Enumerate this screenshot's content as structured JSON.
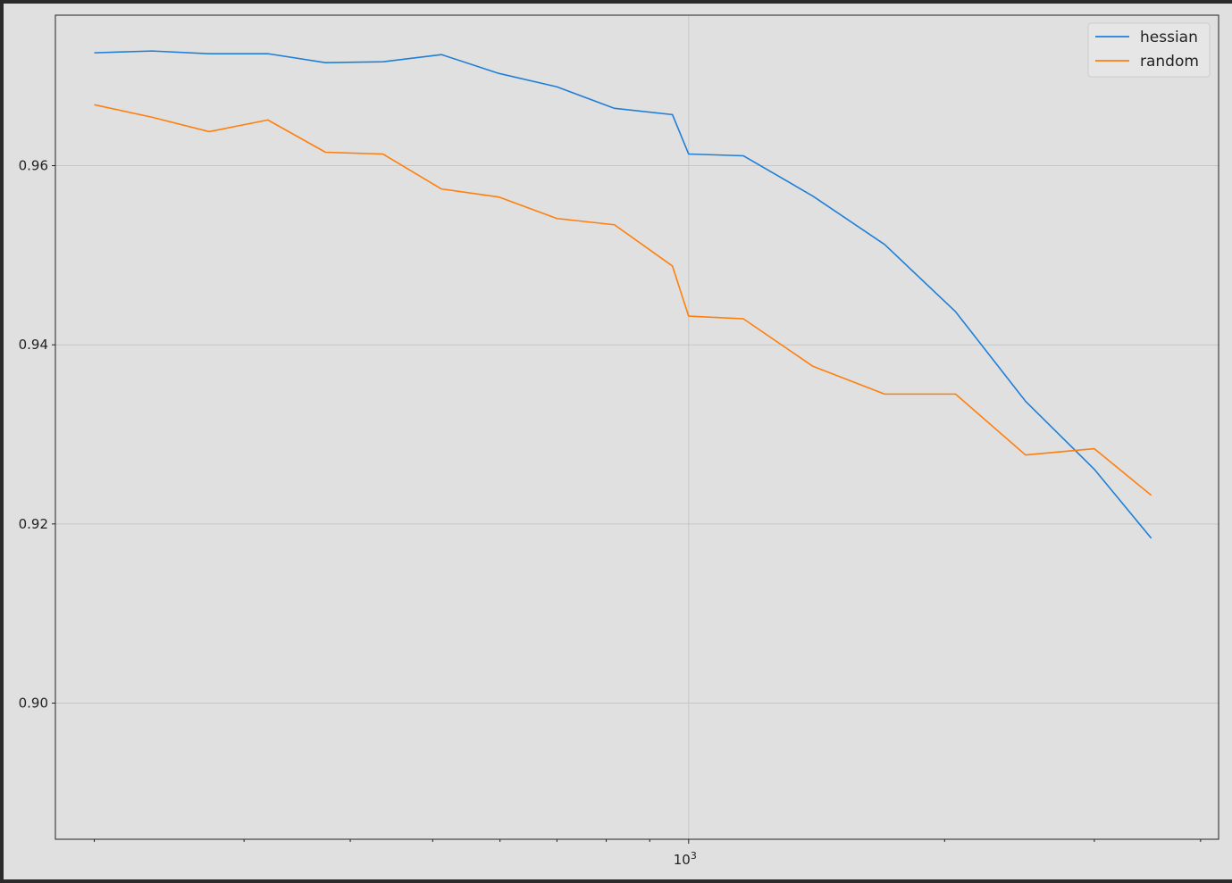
{
  "chart_data": {
    "type": "line",
    "title": "",
    "xlabel": "",
    "ylabel": "",
    "x_scale": "log",
    "x_major_tick_labels": [
      {
        "value": 1000,
        "base": "10",
        "exponent": "3"
      }
    ],
    "xlim": [
      180,
      4200
    ],
    "ylim": [
      0.8848,
      0.9768
    ],
    "y_ticks": [
      0.9,
      0.92,
      0.94,
      0.96
    ],
    "y_tick_labels": [
      "0.90",
      "0.92",
      "0.94",
      "0.96"
    ],
    "grid": true,
    "legend_position": "upper right",
    "x": [
      200,
      234,
      273,
      320,
      374,
      437,
      512,
      598,
      700,
      818,
      957,
      1000,
      1160,
      1400,
      1700,
      2060,
      2490,
      3000,
      3500
    ],
    "series": [
      {
        "name": "hessian",
        "color": "#1f7fd6",
        "values": [
          0.9726,
          0.9728,
          0.9725,
          0.9725,
          0.9715,
          0.9716,
          0.9724,
          0.9703,
          0.9688,
          0.9664,
          0.9657,
          0.9613,
          0.9611,
          0.9566,
          0.9512,
          0.9437,
          0.9337,
          0.9261,
          0.9184
        ]
      },
      {
        "name": "random",
        "color": "#ff7f0e",
        "values": [
          0.9668,
          0.9654,
          0.9638,
          0.9651,
          0.9615,
          0.9613,
          0.9574,
          0.9565,
          0.9541,
          0.9534,
          0.9488,
          0.9432,
          0.9429,
          0.9376,
          0.9345,
          0.9345,
          0.9277,
          0.9284,
          0.9232
        ]
      }
    ]
  }
}
